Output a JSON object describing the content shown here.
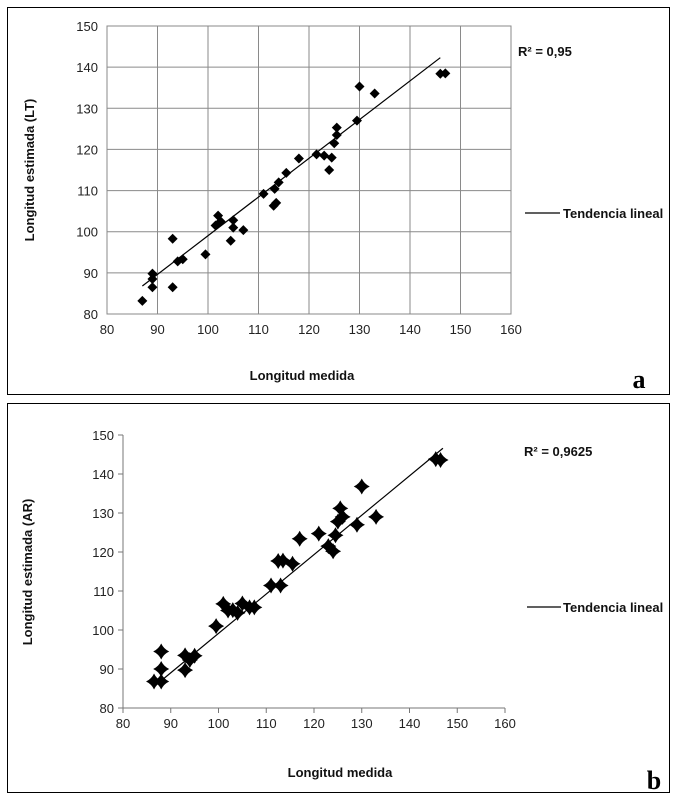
{
  "chart_data": [
    {
      "type": "scatter",
      "panel_label": "a",
      "xlabel": "Longitud medida",
      "ylabel": "Longitud estimada (LT)",
      "xlim": [
        80,
        160
      ],
      "ylim": [
        80,
        150
      ],
      "xticks": [
        "80",
        "90",
        "100",
        "110",
        "120",
        "130",
        "140",
        "150",
        "160"
      ],
      "yticks": [
        "80",
        "90",
        "100",
        "110",
        "120",
        "130",
        "140",
        "150"
      ],
      "annotation": "R² = 0,95",
      "legend": [
        {
          "label": "Tendencia lineal"
        }
      ],
      "legend_position": "right",
      "grid": true,
      "marker_color": "#000000",
      "trend": {
        "x": [
          87,
          146
        ],
        "y": [
          86.8,
          142.3
        ]
      },
      "points": [
        [
          87,
          83.2
        ],
        [
          89,
          86.5
        ],
        [
          89,
          88.5
        ],
        [
          89,
          89.8
        ],
        [
          93,
          86.5
        ],
        [
          93,
          98.3
        ],
        [
          94,
          92.8
        ],
        [
          95,
          93.3
        ],
        [
          99.5,
          94.5
        ],
        [
          101.5,
          101.5
        ],
        [
          102,
          103.9
        ],
        [
          102.5,
          102.5
        ],
        [
          104.5,
          97.8
        ],
        [
          105,
          101
        ],
        [
          105,
          102.8
        ],
        [
          107,
          100.4
        ],
        [
          111,
          109.2
        ],
        [
          113,
          106.3
        ],
        [
          113.2,
          110.4
        ],
        [
          113.5,
          107
        ],
        [
          114,
          112
        ],
        [
          115.5,
          114.3
        ],
        [
          118,
          117.8
        ],
        [
          121.5,
          118.8
        ],
        [
          123,
          118.5
        ],
        [
          124,
          115
        ],
        [
          124.5,
          118
        ],
        [
          125,
          121.5
        ],
        [
          125.5,
          123.5
        ],
        [
          125.5,
          125.3
        ],
        [
          129.5,
          127
        ],
        [
          130,
          135.3
        ],
        [
          133,
          133.6
        ],
        [
          146,
          138.4
        ],
        [
          147,
          138.5
        ]
      ]
    },
    {
      "type": "scatter",
      "panel_label": "b",
      "xlabel": "Longitud medida",
      "ylabel": "Longitud estimada (AR)",
      "xlim": [
        80,
        160
      ],
      "ylim": [
        80,
        150
      ],
      "xticks": [
        "80",
        "90",
        "100",
        "110",
        "120",
        "130",
        "140",
        "150",
        "160"
      ],
      "yticks": [
        "80",
        "90",
        "100",
        "110",
        "120",
        "130",
        "140",
        "150"
      ],
      "annotation": "R² = 0,9625",
      "legend": [
        {
          "label": "Tendencia lineal"
        }
      ],
      "legend_position": "right",
      "grid": false,
      "marker_color": "#000000",
      "trend": {
        "x": [
          87,
          147
        ],
        "y": [
          86.0,
          146.6
        ]
      },
      "points": [
        [
          86.5,
          86.8
        ],
        [
          88,
          86.8
        ],
        [
          88,
          90
        ],
        [
          88,
          94.5
        ],
        [
          93,
          89.7
        ],
        [
          93,
          93.5
        ],
        [
          94,
          92.3
        ],
        [
          95,
          93.4
        ],
        [
          99.5,
          101
        ],
        [
          101,
          106.7
        ],
        [
          102,
          105
        ],
        [
          103,
          105.1
        ],
        [
          104,
          104.4
        ],
        [
          105,
          106.8
        ],
        [
          106.5,
          105.8
        ],
        [
          107.5,
          105.8
        ],
        [
          111,
          111.4
        ],
        [
          112.5,
          117.7
        ],
        [
          113,
          111.4
        ],
        [
          113.5,
          117.8
        ],
        [
          115.5,
          117
        ],
        [
          117,
          123.4
        ],
        [
          121,
          124.7
        ],
        [
          123,
          121.5
        ],
        [
          124,
          120.2
        ],
        [
          124.5,
          124.3
        ],
        [
          125,
          127.8
        ],
        [
          125.5,
          131.2
        ],
        [
          126,
          129
        ],
        [
          129,
          127
        ],
        [
          130,
          136.8
        ],
        [
          133,
          129
        ],
        [
          145.5,
          143.8
        ],
        [
          146.5,
          143.6
        ]
      ]
    }
  ]
}
